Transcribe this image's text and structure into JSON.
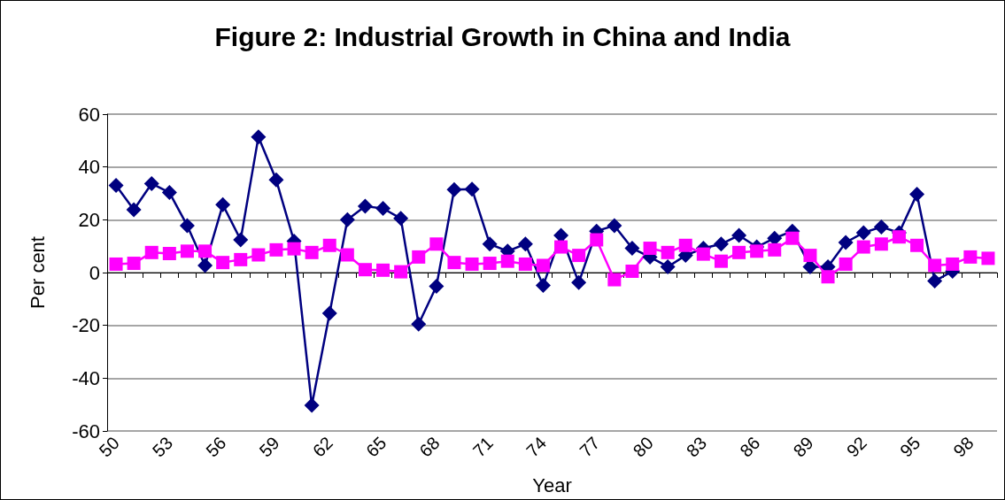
{
  "chart_data": {
    "type": "line",
    "title": "Figure 2: Industrial Growth in China and India",
    "xlabel": "Year",
    "ylabel": "Per cent",
    "categories": [
      "50",
      null,
      null,
      "53",
      null,
      null,
      "56",
      null,
      null,
      "59",
      null,
      null,
      "62",
      null,
      null,
      "65",
      null,
      null,
      "68",
      null,
      null,
      "71",
      null,
      null,
      "74",
      null,
      null,
      "77",
      null,
      null,
      "80",
      null,
      null,
      "83",
      null,
      null,
      "86",
      null,
      null,
      "89",
      null,
      null,
      "92",
      null,
      null,
      "95",
      null,
      null,
      "98",
      null
    ],
    "series": [
      {
        "color": "#000080",
        "marker": "diamond",
        "values": [
          33,
          23.8,
          33.7,
          30.3,
          17.8,
          2.7,
          25.7,
          12.4,
          51.4,
          35.1,
          11.9,
          -50.3,
          -15.4,
          20,
          25.1,
          24.3,
          20.5,
          -19.5,
          -5.2,
          31.4,
          31.6,
          10.8,
          8.1,
          10.8,
          -4.9,
          14.1,
          -3.8,
          15.7,
          17.8,
          9.2,
          5.9,
          2.2,
          6.5,
          9.2,
          10.8,
          14.1,
          9.7,
          13,
          15.7,
          2.2,
          2.2,
          11.4,
          15.1,
          17.3,
          15.1,
          29.7,
          -3.2,
          0.5,
          null,
          null
        ]
      },
      {
        "color": "#ff00ff",
        "marker": "square",
        "values": [
          3.2,
          3.5,
          7.6,
          7.2,
          8.1,
          8.1,
          3.8,
          4.9,
          6.7,
          8.6,
          9,
          7.6,
          10.3,
          6.7,
          1.1,
          0.9,
          0.3,
          5.9,
          10.8,
          3.8,
          3.2,
          3.5,
          4.3,
          3.2,
          2.7,
          9.7,
          6.5,
          12.4,
          -2.7,
          0.5,
          9.2,
          7.6,
          10.3,
          7,
          4.3,
          7.6,
          8.1,
          8.6,
          13,
          6.5,
          -1.6,
          3.2,
          9.7,
          10.8,
          13.5,
          10.3,
          2.7,
          3.2,
          5.9,
          5.4
        ]
      }
    ],
    "ylim": [
      -60,
      60
    ],
    "yticks": [
      -60,
      -40,
      -20,
      0,
      20,
      40,
      60
    ],
    "grid": "y"
  }
}
